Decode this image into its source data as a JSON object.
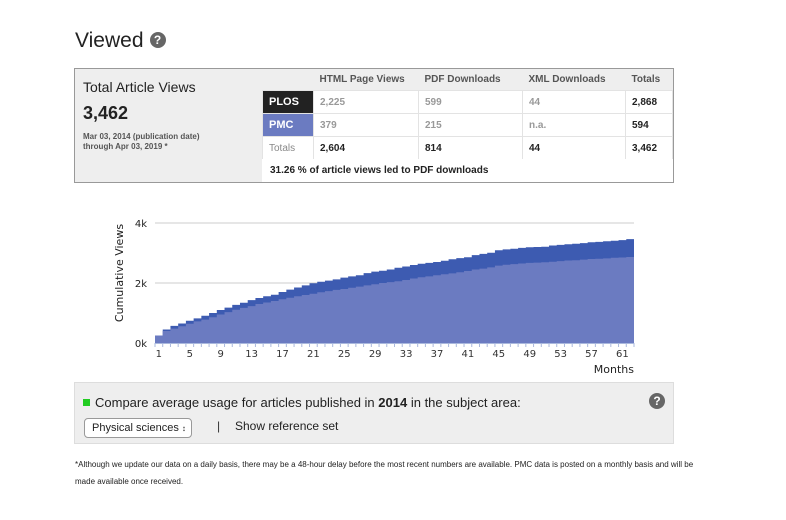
{
  "header": {
    "title": "Viewed",
    "help_icon": "?"
  },
  "summary": {
    "label": "Total Article Views",
    "total": "3,462",
    "date_range_line1": "Mar 03, 2014 (publication date)",
    "date_range_line2": "through Apr 03, 2019 *"
  },
  "table": {
    "columns": [
      "HTML Page Views",
      "PDF Downloads",
      "XML Downloads",
      "Totals"
    ],
    "rows": [
      {
        "label": "PLOS",
        "values": [
          "2,225",
          "599",
          "44",
          "2,868"
        ]
      },
      {
        "label": "PMC",
        "values": [
          "379",
          "215",
          "n.a.",
          "594"
        ]
      },
      {
        "label": "Totals",
        "values": [
          "2,604",
          "814",
          "44",
          "3,462"
        ]
      }
    ],
    "footer": "31.26 % of article views led to PDF downloads"
  },
  "colors": {
    "plos": "#3d5bb1",
    "pmc": "#6b7bc1",
    "grid": "#cccccc",
    "compare_marker": "#22cc22"
  },
  "chart_data": {
    "type": "area",
    "title": "",
    "xlabel": "Months",
    "ylabel": "Cumulative Views",
    "ylim": [
      0,
      4000
    ],
    "yticks": [
      "0k",
      "2k",
      "4k"
    ],
    "yticks_values": [
      0,
      2000,
      4000
    ],
    "xtick_labels": [
      "1",
      "5",
      "9",
      "13",
      "17",
      "21",
      "25",
      "29",
      "33",
      "37",
      "41",
      "45",
      "49",
      "53",
      "57",
      "61"
    ],
    "x_count": 62,
    "series": [
      {
        "name": "PLOS",
        "values": [
          250,
          400,
          480,
          560,
          640,
          720,
          780,
          860,
          950,
          1030,
          1110,
          1170,
          1230,
          1300,
          1350,
          1400,
          1460,
          1510,
          1560,
          1600,
          1640,
          1690,
          1730,
          1770,
          1800,
          1840,
          1880,
          1920,
          1960,
          2000,
          2030,
          2060,
          2100,
          2150,
          2190,
          2220,
          2260,
          2290,
          2320,
          2360,
          2400,
          2450,
          2480,
          2520,
          2580,
          2610,
          2630,
          2650,
          2670,
          2680,
          2690,
          2710,
          2730,
          2750,
          2760,
          2780,
          2800,
          2810,
          2820,
          2840,
          2850,
          2868
        ]
      },
      {
        "name": "Total (PLOS + PMC)",
        "values": [
          250,
          450,
          570,
          650,
          740,
          820,
          910,
          1000,
          1100,
          1180,
          1270,
          1340,
          1430,
          1500,
          1560,
          1610,
          1700,
          1780,
          1850,
          1920,
          1990,
          2040,
          2080,
          2120,
          2180,
          2220,
          2260,
          2330,
          2380,
          2410,
          2450,
          2510,
          2550,
          2600,
          2640,
          2670,
          2700,
          2740,
          2790,
          2830,
          2860,
          2930,
          2970,
          3010,
          3090,
          3120,
          3140,
          3170,
          3190,
          3200,
          3210,
          3250,
          3270,
          3290,
          3310,
          3330,
          3360,
          3370,
          3390,
          3410,
          3430,
          3462
        ]
      }
    ]
  },
  "compare": {
    "prefix": "Compare average usage for articles published in",
    "year": "2014",
    "suffix": "in the subject area:",
    "select_value": "Physical sciences",
    "separator": "|",
    "show_reference": "Show reference set",
    "help_icon": "?"
  },
  "footnote": "*Although we update our data on a daily basis, there may be a 48-hour delay before the most recent numbers are available. PMC data is posted on a monthly basis and will be made available once received."
}
